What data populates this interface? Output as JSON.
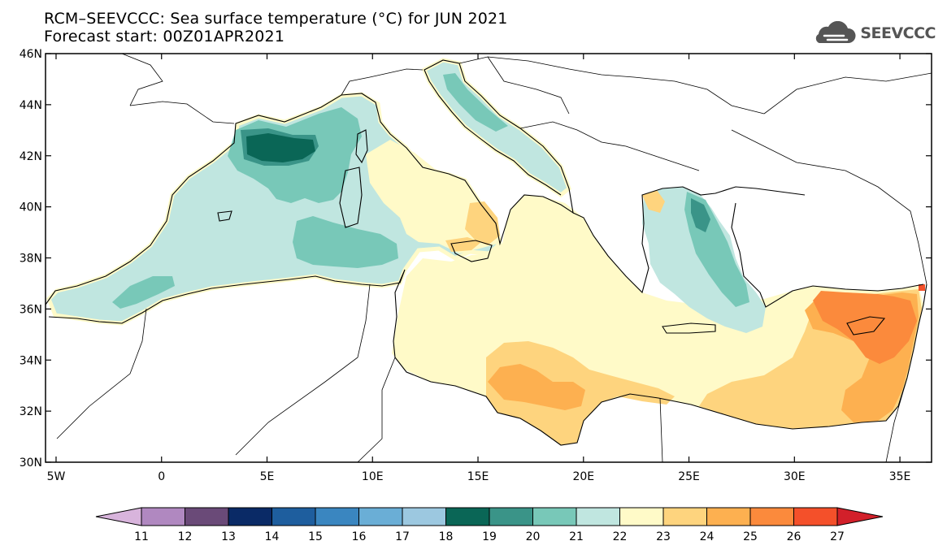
{
  "title": {
    "line1": "RCM–SEEVCCC: Sea surface temperature (°C) for JUN 2021",
    "line2": "Forecast start: 00Z01APR2021"
  },
  "logo": {
    "text": "SEEVCCC",
    "icon": "cloud-icon"
  },
  "map": {
    "region": "Mediterranean Sea",
    "variable": "Sea surface temperature (°C)",
    "lon_range": [
      -5.5,
      36.5
    ],
    "lat_range": [
      30,
      46
    ],
    "lon_ticks": [
      {
        "lon": -5,
        "label": "5W"
      },
      {
        "lon": 0,
        "label": "0"
      },
      {
        "lon": 5,
        "label": "5E"
      },
      {
        "lon": 10,
        "label": "10E"
      },
      {
        "lon": 15,
        "label": "15E"
      },
      {
        "lon": 20,
        "label": "20E"
      },
      {
        "lon": 25,
        "label": "25E"
      },
      {
        "lon": 30,
        "label": "30E"
      },
      {
        "lon": 35,
        "label": "35E"
      }
    ],
    "lat_ticks": [
      {
        "lat": 46,
        "label": "46N"
      },
      {
        "lat": 44,
        "label": "44N"
      },
      {
        "lat": 42,
        "label": "42N"
      },
      {
        "lat": 40,
        "label": "40N"
      },
      {
        "lat": 38,
        "label": "38N"
      },
      {
        "lat": 36,
        "label": "36N"
      },
      {
        "lat": 34,
        "label": "34N"
      },
      {
        "lat": 32,
        "label": "32N"
      },
      {
        "lat": 30,
        "label": "30N"
      }
    ]
  },
  "colorbar": {
    "labels": [
      "11",
      "12",
      "13",
      "14",
      "15",
      "16",
      "17",
      "18",
      "19",
      "20",
      "21",
      "22",
      "23",
      "24",
      "25",
      "26",
      "27"
    ],
    "below_color": "#d8b4dc",
    "above_color": "#d2202a",
    "colors": [
      "#b088c0",
      "#6a4a78",
      "#0a2a66",
      "#1e5e9e",
      "#3a86c0",
      "#6aaed6",
      "#9cc8e0",
      "#0a6656",
      "#3a9488",
      "#78c8b8",
      "#c0e6e0",
      "#fffac8",
      "#fed47e",
      "#fdb050",
      "#fb8a3c",
      "#f4502a"
    ]
  },
  "palette": {
    "sst_19": "#0a6656",
    "sst_20": "#3a9488",
    "sst_21": "#78c8b8",
    "sst_22": "#c0e6e0",
    "sst_23": "#fffac8",
    "sst_24": "#fed47e",
    "sst_25": "#fdb050",
    "sst_26": "#fb8a3c",
    "sst_27": "#f4502a"
  }
}
